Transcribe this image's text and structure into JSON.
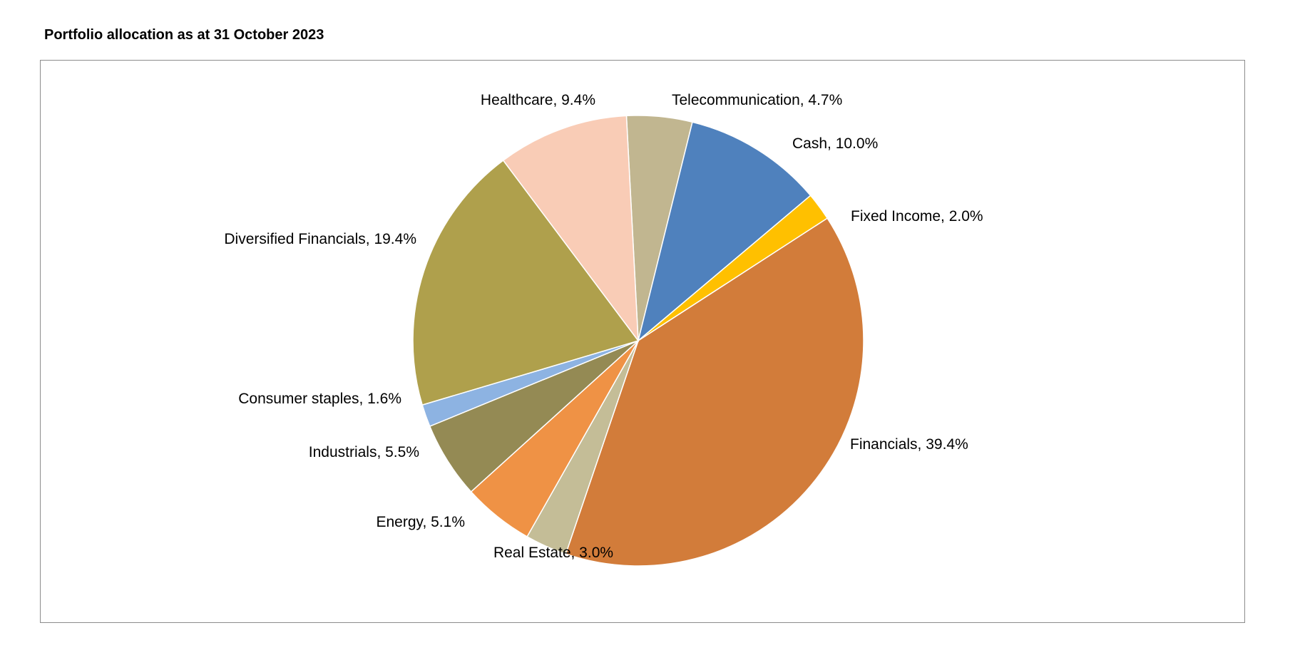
{
  "title": "Portfolio allocation as at 31 October 2023",
  "chart_data": {
    "type": "pie",
    "title": "Portfolio allocation as at 31 October 2023",
    "unit": "%",
    "slices": [
      {
        "label": "Telecommunication",
        "value": 4.7,
        "display": "Telecommunication, 4.7%",
        "color": "#c1b690"
      },
      {
        "label": "Cash",
        "value": 10.0,
        "display": "Cash, 10.0%",
        "color": "#4f81bd"
      },
      {
        "label": "Fixed Income",
        "value": 2.0,
        "display": "Fixed Income, 2.0%",
        "color": "#ffc000"
      },
      {
        "label": "Financials",
        "value": 39.4,
        "display": "Financials, 39.4%",
        "color": "#d27c3a"
      },
      {
        "label": "Real Estate",
        "value": 3.0,
        "display": "Real Estate, 3.0%",
        "color": "#c4bd97"
      },
      {
        "label": "Energy",
        "value": 5.1,
        "display": "Energy, 5.1%",
        "color": "#ef9245"
      },
      {
        "label": "Industrials",
        "value": 5.5,
        "display": "Industrials, 5.5%",
        "color": "#948a54"
      },
      {
        "label": "Consumer staples",
        "value": 1.6,
        "display": "Consumer staples, 1.6%",
        "color": "#8db3e2"
      },
      {
        "label": "Diversified Financials",
        "value": 19.4,
        "display": "Diversified Financials, 19.4%",
        "color": "#afa04c"
      },
      {
        "label": "Healthcare",
        "value": 9.4,
        "display": "Healthcare, 9.4%",
        "color": "#f9ccb6"
      }
    ]
  }
}
